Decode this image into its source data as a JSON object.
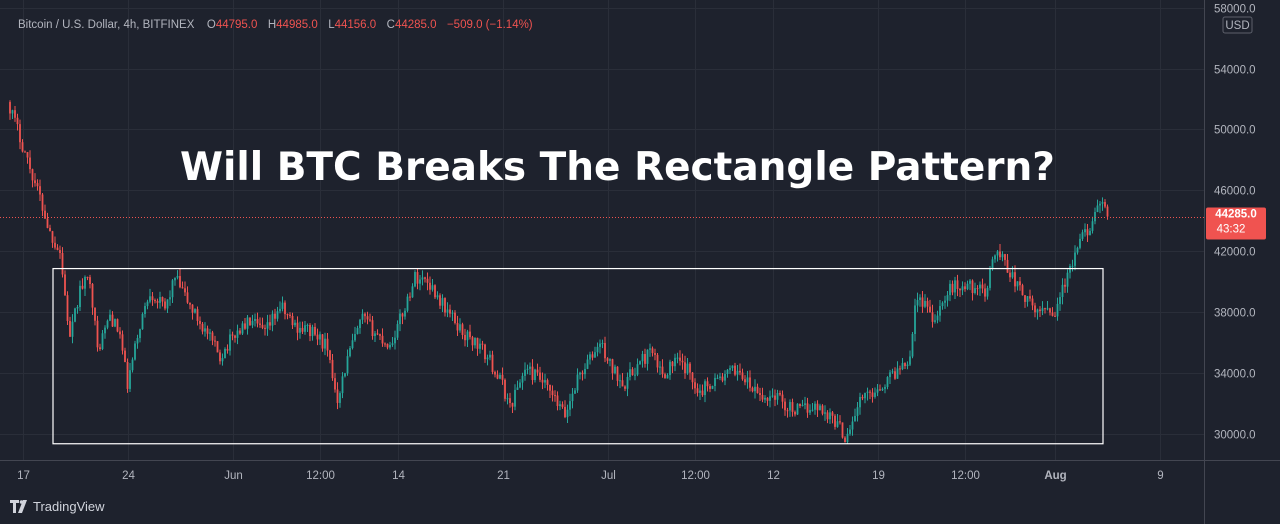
{
  "header": {
    "symbol": "Bitcoin / U.S. Dollar, 4h, BITFINEX",
    "open_label": "O",
    "open_value": "44795.0",
    "high_label": "H",
    "high_value": "44985.0",
    "low_label": "L",
    "low_value": "44156.0",
    "close_label": "C",
    "close_value": "44285.0",
    "change": "−509.0 (−1.14%)"
  },
  "overlay_title": "Will BTC Breaks The Rectangle Pattern?",
  "currency_badge": "USD",
  "last_price_label": {
    "price": "44285.0",
    "countdown": "43:32",
    "color": "#f05350"
  },
  "brand": {
    "name": "TradingView",
    "icon": "tradingview-logo-icon"
  },
  "colors": {
    "up": "#26a69a",
    "down": "#ef5350",
    "background": "#1e222d",
    "grid": "#2a2e39",
    "rectangle": "#ffffff"
  },
  "chart_data": {
    "type": "candlestick",
    "ylim": [
      28300,
      58500
    ],
    "y_ticks": [
      "30000.0",
      "34000.0",
      "38000.0",
      "42000.0",
      "46000.0",
      "50000.0",
      "54000.0",
      "58000.0"
    ],
    "y_tick_values": [
      30000,
      34000,
      38000,
      42000,
      46000,
      50000,
      54000,
      58000
    ],
    "x_ticks": [
      {
        "label": "17",
        "index": 5,
        "bold": false
      },
      {
        "label": "24",
        "index": 47,
        "bold": false
      },
      {
        "label": "Jun",
        "index": 89,
        "bold": false
      },
      {
        "label": "12:00",
        "index": 124,
        "bold": false
      },
      {
        "label": "14",
        "index": 155,
        "bold": false
      },
      {
        "label": "21",
        "index": 197,
        "bold": false
      },
      {
        "label": "Jul",
        "index": 239,
        "bold": false
      },
      {
        "label": "12:00",
        "index": 274,
        "bold": false
      },
      {
        "label": "12",
        "index": 305,
        "bold": false
      },
      {
        "label": "19",
        "index": 347,
        "bold": false
      },
      {
        "label": "12:00",
        "index": 382,
        "bold": false
      },
      {
        "label": "Aug",
        "index": 418,
        "bold": true
      },
      {
        "label": "9",
        "index": 460,
        "bold": false
      }
    ],
    "candle_count": 455,
    "close_anchors": [
      [
        0,
        51500
      ],
      [
        4,
        49500
      ],
      [
        8,
        47500
      ],
      [
        12,
        45500
      ],
      [
        16,
        43200
      ],
      [
        20,
        42000
      ],
      [
        24,
        36200
      ],
      [
        28,
        39500
      ],
      [
        32,
        40300
      ],
      [
        35,
        35500
      ],
      [
        40,
        37800
      ],
      [
        44,
        36500
      ],
      [
        47,
        33200
      ],
      [
        52,
        37200
      ],
      [
        56,
        39400
      ],
      [
        62,
        38200
      ],
      [
        66,
        40300
      ],
      [
        72,
        38400
      ],
      [
        78,
        36800
      ],
      [
        84,
        35100
      ],
      [
        90,
        36600
      ],
      [
        96,
        37400
      ],
      [
        102,
        36600
      ],
      [
        108,
        38400
      ],
      [
        114,
        37100
      ],
      [
        120,
        36800
      ],
      [
        126,
        35900
      ],
      [
        131,
        32400
      ],
      [
        136,
        35500
      ],
      [
        141,
        37600
      ],
      [
        147,
        36500
      ],
      [
        152,
        35800
      ],
      [
        157,
        37900
      ],
      [
        162,
        40300
      ],
      [
        167,
        40100
      ],
      [
        172,
        38800
      ],
      [
        177,
        37600
      ],
      [
        182,
        36500
      ],
      [
        187,
        35900
      ],
      [
        192,
        34800
      ],
      [
        197,
        33200
      ],
      [
        200,
        31800
      ],
      [
        206,
        34300
      ],
      [
        212,
        33600
      ],
      [
        218,
        32200
      ],
      [
        222,
        31200
      ],
      [
        227,
        33700
      ],
      [
        232,
        34900
      ],
      [
        236,
        36000
      ],
      [
        241,
        34200
      ],
      [
        246,
        33400
      ],
      [
        251,
        34500
      ],
      [
        256,
        35400
      ],
      [
        261,
        33900
      ],
      [
        266,
        34800
      ],
      [
        271,
        34200
      ],
      [
        276,
        32800
      ],
      [
        281,
        33500
      ],
      [
        286,
        33800
      ],
      [
        291,
        34300
      ],
      [
        296,
        33100
      ],
      [
        301,
        32300
      ],
      [
        306,
        32600
      ],
      [
        311,
        31800
      ],
      [
        316,
        31500
      ],
      [
        321,
        31900
      ],
      [
        326,
        31500
      ],
      [
        331,
        30700
      ],
      [
        334,
        29800
      ],
      [
        337,
        30900
      ],
      [
        340,
        32200
      ],
      [
        345,
        32800
      ],
      [
        350,
        33400
      ],
      [
        356,
        34400
      ],
      [
        360,
        35200
      ],
      [
        362,
        38600
      ],
      [
        366,
        38800
      ],
      [
        369,
        37600
      ],
      [
        373,
        38600
      ],
      [
        377,
        39700
      ],
      [
        382,
        39700
      ],
      [
        387,
        39700
      ],
      [
        390,
        38900
      ],
      [
        393,
        41800
      ],
      [
        397,
        41700
      ],
      [
        401,
        40300
      ],
      [
        405,
        39200
      ],
      [
        410,
        38000
      ],
      [
        415,
        38400
      ],
      [
        418,
        37900
      ],
      [
        420,
        39200
      ],
      [
        423,
        40200
      ],
      [
        427,
        42200
      ],
      [
        431,
        43500
      ],
      [
        435,
        44600
      ],
      [
        438,
        44900
      ],
      [
        439,
        44285
      ]
    ],
    "rectangle": {
      "y_high": 40900,
      "y_low": 29400,
      "x_start_index": 17,
      "x_end_index": 437
    },
    "last_close": 44285.0
  }
}
